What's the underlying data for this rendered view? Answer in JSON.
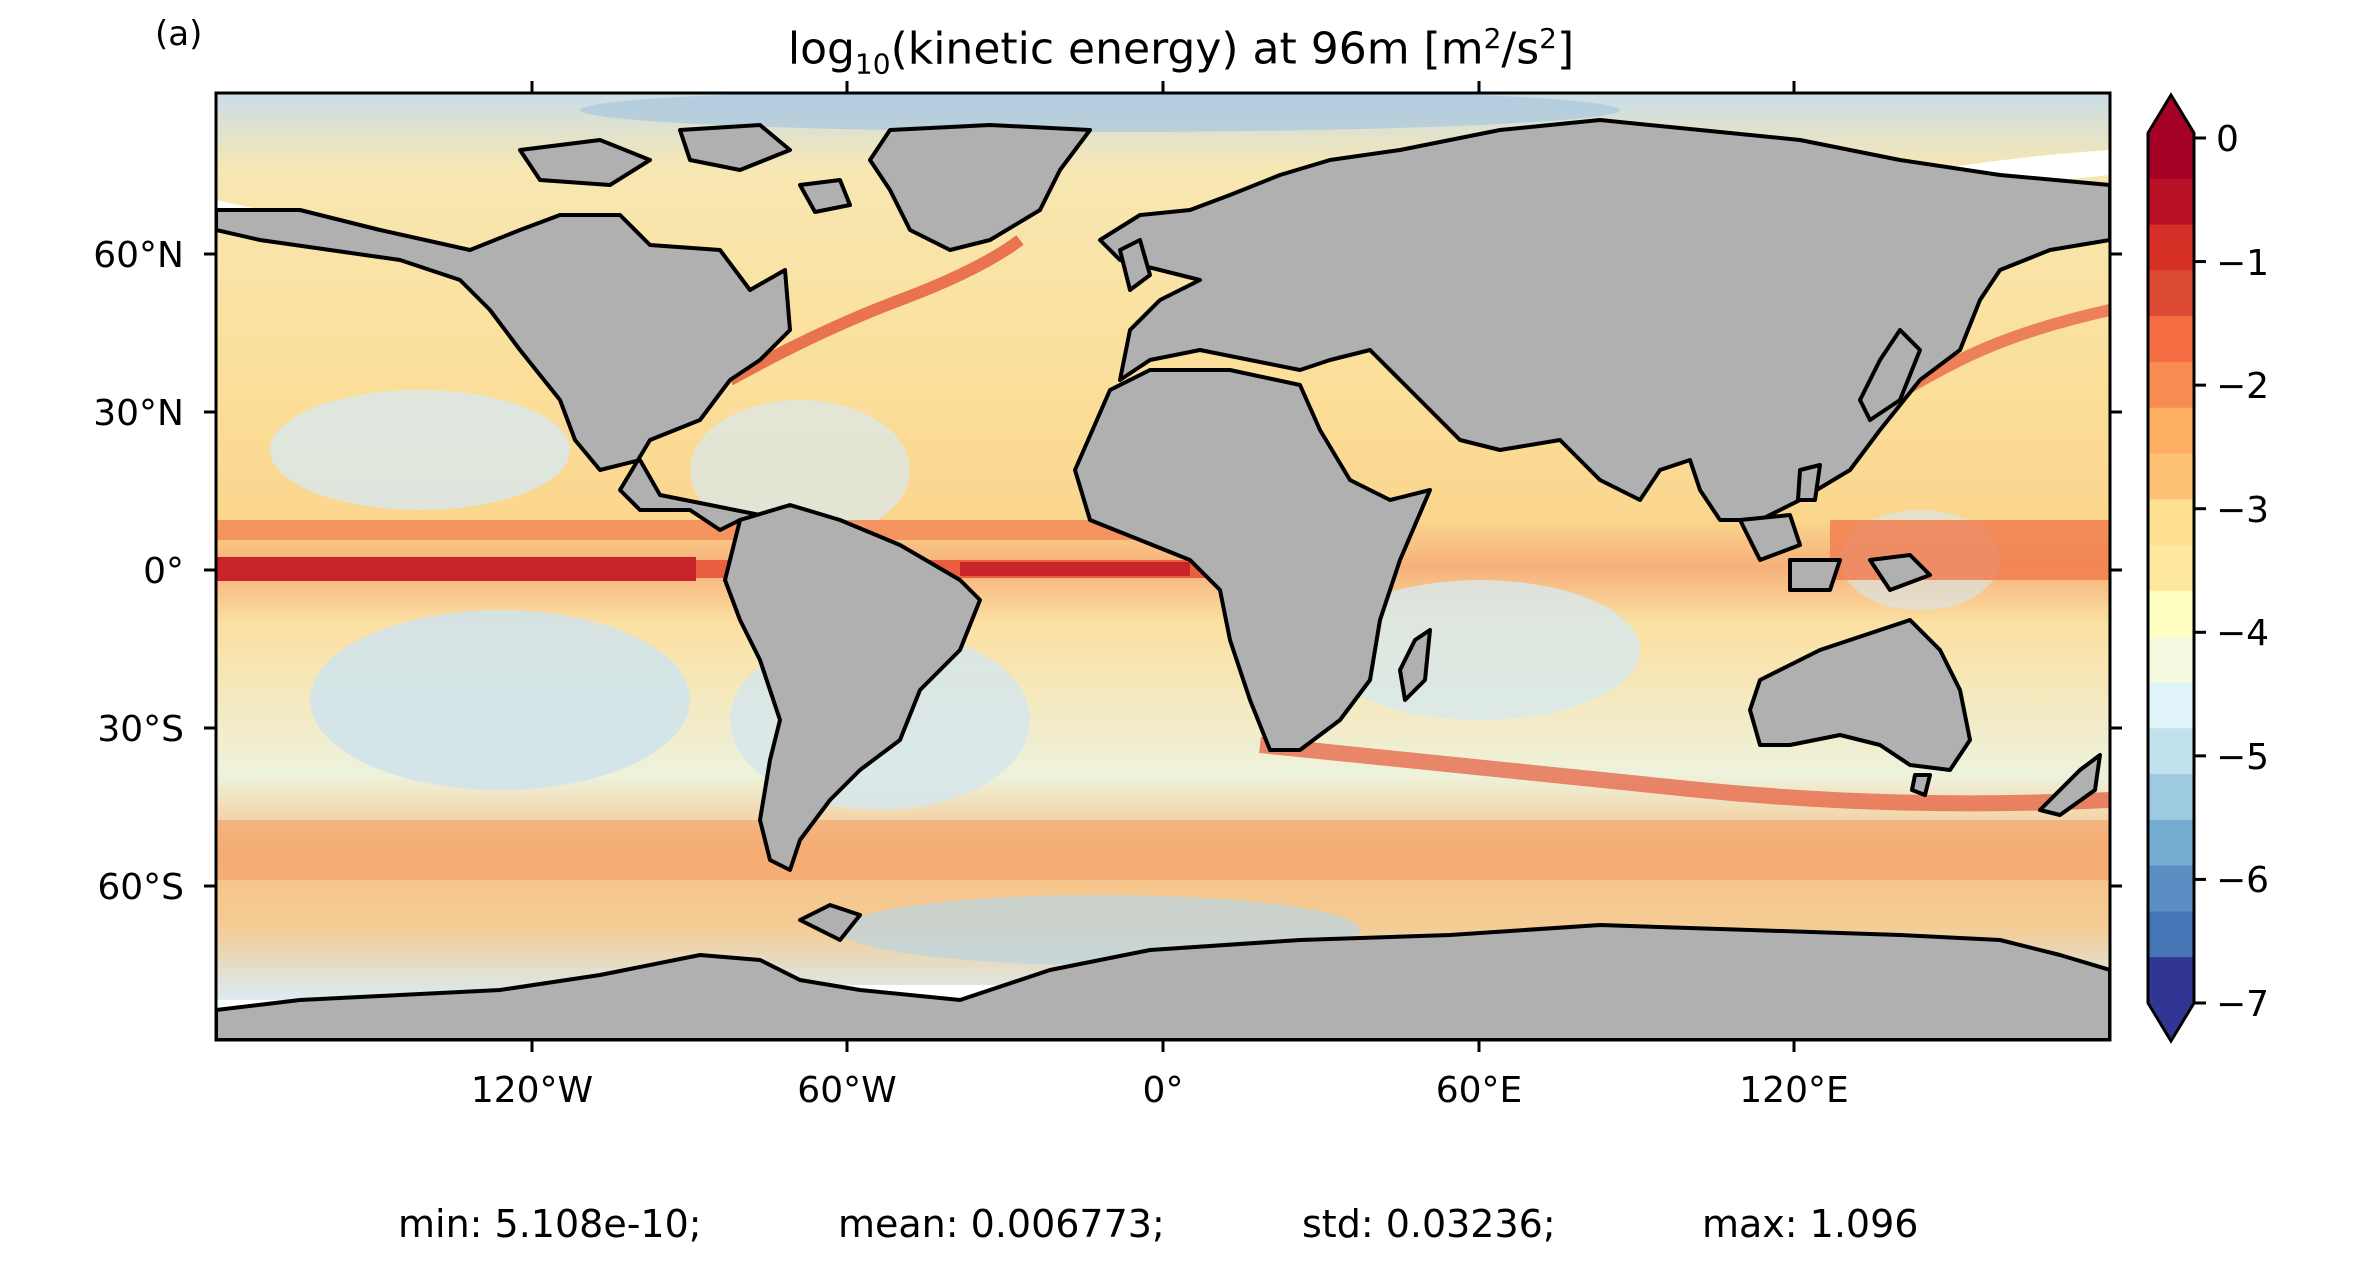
{
  "panel_label": "(a)",
  "title": {
    "prefix": "log",
    "prefix_sub": "10",
    "main": "(kinetic energy) at 96m [m",
    "sup1": "2",
    "mid": "/s",
    "sup2": "2",
    "suffix": "]"
  },
  "axes": {
    "lat_labels": [
      "60°N",
      "30°N",
      "0°",
      "30°S",
      "60°S"
    ],
    "lon_labels": [
      "120°W",
      "60°W",
      "0°",
      "60°E",
      "120°E"
    ]
  },
  "colorbar": {
    "labels": [
      "0",
      "−1",
      "−2",
      "−3",
      "−4",
      "−5",
      "−6",
      "−7"
    ],
    "range": [
      -7,
      0
    ],
    "extend": "both",
    "colors": [
      "#313695",
      "#4575b4",
      "#5b8fc3",
      "#74add1",
      "#9ecae1",
      "#c1e1ed",
      "#e0f3f8",
      "#f5f9df",
      "#ffffbf",
      "#fee8a0",
      "#fee090",
      "#fdc274",
      "#fdae61",
      "#f88c51",
      "#f46d43",
      "#dd4a33",
      "#d73027",
      "#b81026",
      "#a50026"
    ]
  },
  "legend_note": {
    "land_color": "#b0b0b0",
    "ice_color": "#ffffff"
  },
  "stats": {
    "min": "min: 5.108e-10;",
    "mean": "mean: 0.006773;",
    "std": "std: 0.03236;",
    "max": "max: 1.096"
  }
}
